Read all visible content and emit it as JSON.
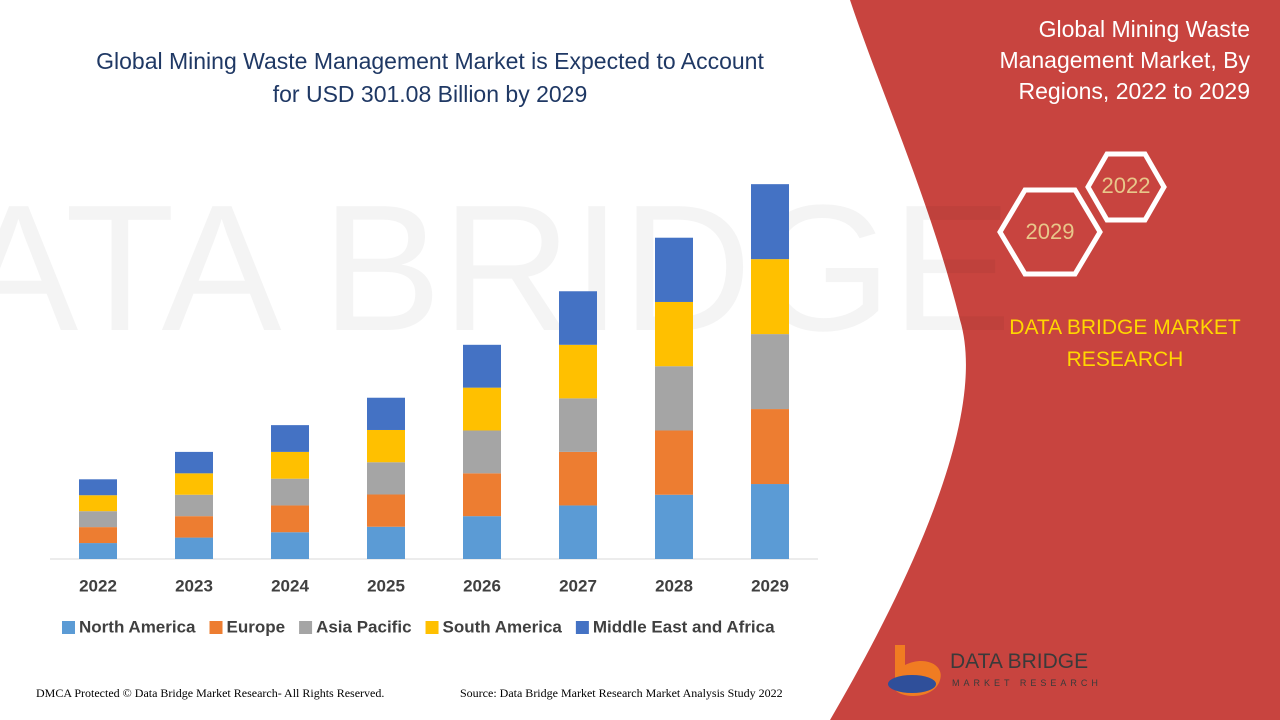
{
  "chart_data": {
    "type": "stacked-bar",
    "title": "Global Mining Waste Management Market is Expected to Account for USD 301.08 Billion by 2029",
    "categories": [
      "2022",
      "2023",
      "2024",
      "2025",
      "2026",
      "2027",
      "2028",
      "2029"
    ],
    "series": [
      {
        "name": "North America",
        "color": "#5b9bd5",
        "values": [
          12.8,
          17.2,
          21.5,
          25.9,
          34.4,
          43.0,
          51.6,
          60.2
        ]
      },
      {
        "name": "Europe",
        "color": "#ed7d31",
        "values": [
          12.8,
          17.2,
          21.5,
          25.9,
          34.4,
          43.0,
          51.6,
          60.2
        ]
      },
      {
        "name": "Asia Pacific",
        "color": "#a5a5a5",
        "values": [
          12.8,
          17.2,
          21.5,
          25.9,
          34.4,
          43.0,
          51.6,
          60.2
        ]
      },
      {
        "name": "South America",
        "color": "#ffc000",
        "values": [
          12.8,
          17.2,
          21.5,
          25.9,
          34.4,
          43.0,
          51.6,
          60.2
        ]
      },
      {
        "name": "Middle East and Africa",
        "color": "#4472c4",
        "values": [
          12.8,
          17.2,
          21.5,
          25.9,
          34.4,
          43.0,
          51.6,
          60.2
        ]
      }
    ],
    "ylim": [
      0,
      320
    ]
  },
  "side_panel": {
    "title": "Global Mining Waste Management Market, By Regions, 2022 to 2029",
    "hex_labels": [
      "2022",
      "2029"
    ],
    "brand": "DATA BRIDGE MARKET RESEARCH"
  },
  "logo": {
    "name": "DATA BRIDGE",
    "tagline": "MARKET RESEARCH"
  },
  "footer": {
    "left": "DMCA Protected © Data Bridge Market Research- All Rights Reserved.",
    "right": "Source: Data Bridge Market Research Market Analysis Study 2022"
  }
}
